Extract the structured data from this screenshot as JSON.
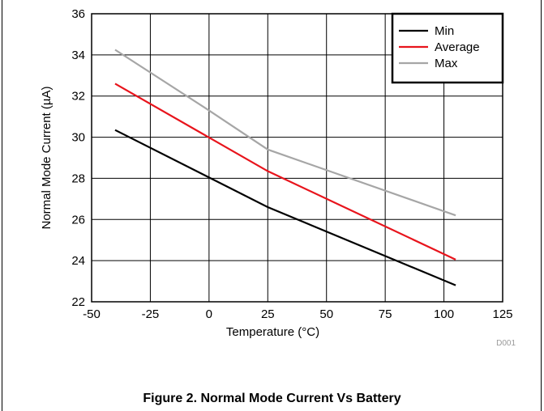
{
  "figure_id": "D001",
  "caption": "Figure 2. Normal Mode Current Vs Battery",
  "chart_data": {
    "type": "line",
    "xlabel": "Temperature (°C)",
    "ylabel": "Normal Mode Current (µA)",
    "xlim": [
      -50,
      125
    ],
    "ylim": [
      22,
      36
    ],
    "xticks": [
      -50,
      -25,
      0,
      25,
      50,
      75,
      100,
      125
    ],
    "yticks": [
      22,
      24,
      26,
      28,
      30,
      32,
      34,
      36
    ],
    "grid": true,
    "legend_position": "top-right",
    "series": [
      {
        "name": "Min",
        "color": "#000000",
        "x": [
          -40,
          25,
          105
        ],
        "y": [
          30.35,
          26.6,
          22.8
        ]
      },
      {
        "name": "Average",
        "color": "#e8141c",
        "x": [
          -40,
          25,
          105
        ],
        "y": [
          32.6,
          28.35,
          24.05
        ]
      },
      {
        "name": "Max",
        "color": "#a6a6a6",
        "x": [
          -40,
          0,
          25,
          105
        ],
        "y": [
          34.25,
          31.3,
          29.4,
          26.2
        ]
      }
    ]
  }
}
